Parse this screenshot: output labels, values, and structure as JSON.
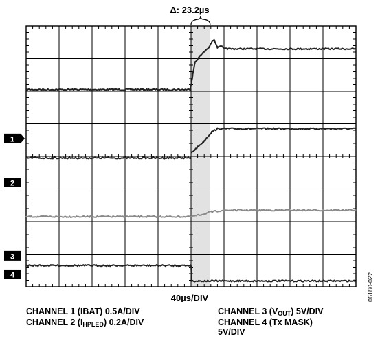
{
  "chart_data": {
    "type": "line",
    "title": "",
    "xlabel": "40µs/DIV",
    "delta_label": "Δ: 23.2µs",
    "x_range_us": [
      0,
      400
    ],
    "y_range_div": [
      -4,
      4
    ],
    "grid": true,
    "trace_color": "#222222",
    "trace2_color": "#8a8a8a",
    "cursor_shade_color": "#e2e2e2",
    "cursor_us": [
      200,
      223.2
    ],
    "marker_labels": [
      "1",
      "2",
      "3",
      "4"
    ],
    "series": [
      {
        "name": "CHANNEL 1 (IBAT) 0.5A/DIV",
        "x": [
          0,
          199,
          202,
          205,
          210,
          215,
          218,
          222,
          225,
          228,
          232,
          236,
          240,
          244,
          400
        ],
        "y": [
          2.05,
          2.05,
          2.5,
          2.9,
          3.05,
          3.2,
          3.25,
          3.35,
          3.5,
          3.6,
          3.35,
          3.4,
          3.3,
          3.3,
          3.3
        ]
      },
      {
        "name": "CHANNEL 3 (VOUT) 5V/DIV",
        "x": [
          0,
          200,
          215,
          225,
          232,
          400
        ],
        "y": [
          null,
          0.1,
          0.45,
          0.75,
          0.85,
          0.85
        ]
      },
      {
        "name": "CHANNEL 2 (IHPLED) 0.2A/DIV",
        "x": [
          0,
          199,
          200,
          400
        ],
        "y": [
          -0.05,
          -0.05,
          -0.05,
          null
        ]
      },
      {
        "name": "CHANNEL 2 (IHPLED) 0.2A/DIV (lower trace)",
        "x": [
          0,
          200,
          210,
          225,
          240,
          400
        ],
        "y": [
          -1.85,
          -1.85,
          -1.8,
          -1.7,
          -1.65,
          -1.65
        ]
      },
      {
        "name": "CHANNEL 4 (Tx MASK) 5V/DIV",
        "x": [
          0,
          199,
          200,
          201,
          400
        ],
        "y": [
          -3.35,
          -3.35,
          -3.35,
          -3.82,
          -3.82
        ]
      }
    ]
  },
  "captions": {
    "ch1": "CHANNEL 1 (IBAT) 0.5A/DIV",
    "ch2_prefix": "CHANNEL 2 (I",
    "ch2_sub": "HPLED",
    "ch2_suffix": ") 0.2A/DIV",
    "ch3_prefix": "CHANNEL 3 (V",
    "ch3_sub": "OUT",
    "ch3_suffix": ") 5V/DIV",
    "ch4_line1": "CHANNEL 4 (Tx MASK)",
    "ch4_line2": "5V/DIV"
  },
  "figure_id": "06180-022"
}
